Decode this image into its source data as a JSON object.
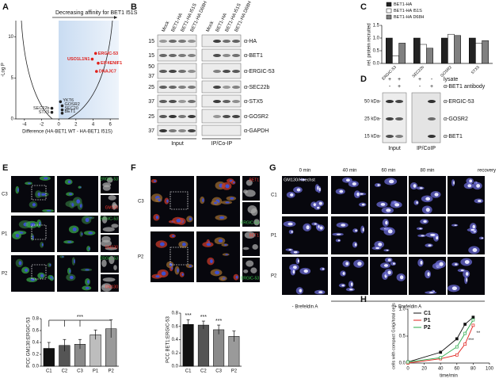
{
  "figure": {
    "panel_labels": [
      "A",
      "B",
      "C",
      "D",
      "E",
      "F",
      "G",
      "H"
    ],
    "panel_a": {
      "title": "Decreasing affinity for BET1 I51S"
    },
    "blot_b": {
      "lanes": [
        "Mock",
        "BET1-HA",
        "BET1-HA I51S",
        "BET1-HA D68H",
        "Mock",
        "BET1-HA",
        "BET1-HA I51S",
        "BET1-HA D68H"
      ],
      "rows": [
        {
          "mw": [
            15
          ],
          "antibody": "α-HA"
        },
        {
          "mw": [
            15
          ],
          "antibody": "α-BET1"
        },
        {
          "mw": [
            50,
            37
          ],
          "antibody": "α-ERGIC-53"
        },
        {
          "mw": [
            25
          ],
          "antibody": "α-SEC22b"
        },
        {
          "mw": [
            37
          ],
          "antibody": "α-STX5"
        },
        {
          "mw": [
            25
          ],
          "antibody": "α-GOSR2"
        },
        {
          "mw": [
            37
          ],
          "antibody": "α-GAPDH"
        }
      ],
      "groups": [
        "Input",
        "IP/Co-IP"
      ]
    },
    "blot_d": {
      "conditions": [
        {
          "label": "lysate",
          "signs": [
            "+",
            "+",
            "+",
            "-"
          ]
        },
        {
          "label": "α-BET1 antibody",
          "signs": [
            "-",
            "+",
            "-",
            "+"
          ]
        }
      ],
      "rows": [
        {
          "mw": "50 kDa-",
          "antibody": "α-ERGIC-53"
        },
        {
          "mw": "25 kDa-",
          "antibody": "α-GOSR2"
        },
        {
          "mw": "15 kDa-",
          "antibody": "α-BET1"
        }
      ],
      "groups": [
        "Input",
        "IP/CoIP"
      ]
    },
    "micro_e": {
      "rows": [
        "C3",
        "P1",
        "P2"
      ],
      "channels": [
        "ERGIC-53",
        "GM130"
      ]
    },
    "micro_f": {
      "rows": [
        "C3",
        "P2"
      ],
      "channels": [
        "BET1",
        "ERGIC-53"
      ]
    },
    "micro_g": {
      "stain": "GM130/Hoechst",
      "columns": [
        "0 min",
        "40 min",
        "60 min",
        "80 min",
        "recovery"
      ],
      "rows": [
        "C1",
        "P1",
        "P2"
      ],
      "treatments": [
        "- Brefeldin A",
        "+ Brefeldin A"
      ]
    }
  },
  "chart_data": [
    {
      "type": "scatter",
      "xlabel": "Difference (HA-BET1 WT - HA-BET1 I51S)",
      "ylabel": "-Log P",
      "x": [
        4.3,
        3.9,
        4.6,
        4.4,
        0.2,
        0.4,
        0.4,
        0.4,
        -0.8,
        -0.8
      ],
      "values": [
        8,
        7.3,
        6.8,
        5.8,
        2.1,
        1.6,
        1.1,
        0.7,
        1.3,
        0.8
      ],
      "point_labels": [
        "ERGIC-53",
        "USO1L1N1",
        "EIF4ENIF1",
        "DNAJC7",
        "YKT6",
        "GOSR2",
        "SEC20",
        "BET1",
        "SEC22b",
        "STX5"
      ],
      "colors": [
        "#e0201b",
        "#e0201b",
        "#e0201b",
        "#e0201b",
        "#222222",
        "#222222",
        "#222222",
        "#222222",
        "#222222",
        "#222222"
      ],
      "xlim": [
        -5,
        7
      ],
      "xticks": [
        -4,
        -2,
        0,
        2,
        4,
        6
      ],
      "ylim": [
        0,
        12
      ],
      "yticks": [
        0,
        5,
        10
      ]
    },
    {
      "type": "bar",
      "ylabel": "rel. protein recruited",
      "categories": [
        "ERGIC-53",
        "SEC22b",
        "GOSR2",
        "STX5"
      ],
      "series": [
        {
          "name": "BET1-HA",
          "color": "#222222",
          "values": [
            1.0,
            1.0,
            1.0,
            1.0
          ]
        },
        {
          "name": "BET1-HA I51S",
          "color": "#ffffff",
          "values": [
            0.3,
            0.75,
            1.15,
            0.8
          ]
        },
        {
          "name": "BET1-HA D68H",
          "color": "#808080",
          "values": [
            0.8,
            0.6,
            1.1,
            0.9
          ]
        }
      ],
      "ylim": [
        0,
        1.5
      ],
      "yticks": [
        {
          "value": 0,
          "label": "0.0"
        },
        {
          "value": 0.5,
          "label": "0.5"
        },
        {
          "value": 1,
          "label": "1.0"
        },
        {
          "value": 1.5,
          "label": "1.5"
        }
      ]
    },
    {
      "type": "bar",
      "ylabel": "PCC GM130:ERGIC-53",
      "categories": [
        "C1",
        "C2",
        "C3",
        "P1",
        "P2"
      ],
      "values": [
        0.3,
        0.35,
        0.37,
        0.53,
        0.63
      ],
      "errors": [
        0.1,
        0.1,
        0.08,
        0.08,
        0.15
      ],
      "colors": [
        "#111111",
        "#555555",
        "#8a8a8a",
        "#bdbdbd",
        "#9a9a9a"
      ],
      "bracket_label": "***",
      "ylim": [
        0,
        0.8
      ],
      "yticks": [
        {
          "value": 0,
          "label": "0.0"
        },
        {
          "value": 0.2,
          "label": "0.2"
        },
        {
          "value": 0.4,
          "label": "0.4"
        },
        {
          "value": 0.6,
          "label": "0.6"
        },
        {
          "value": 0.8,
          "label": "0.8"
        }
      ]
    },
    {
      "type": "bar",
      "ylabel": "PCC BET1:ERGIC-53",
      "categories": [
        "C1",
        "C2",
        "C3",
        "P2"
      ],
      "values": [
        0.63,
        0.62,
        0.55,
        0.45
      ],
      "errors": [
        0.07,
        0.06,
        0.07,
        0.08
      ],
      "colors": [
        "#111111",
        "#555555",
        "#8a8a8a",
        "#9a9a9a"
      ],
      "annotations": [
        "***",
        "***",
        "***"
      ],
      "ylim": [
        0,
        0.8
      ],
      "yticks": [
        {
          "value": 0,
          "label": "0.0"
        },
        {
          "value": 0.2,
          "label": "0.2"
        },
        {
          "value": 0.4,
          "label": "0.4"
        },
        {
          "value": 0.6,
          "label": "0.6"
        },
        {
          "value": 0.8,
          "label": "0.8"
        }
      ]
    },
    {
      "type": "line",
      "xlabel": "time/min",
      "ylabel": "cells with compact Golgi/total cells",
      "x": [
        0,
        40,
        60,
        70,
        80
      ],
      "series": [
        {
          "name": "C1",
          "color": "#111111",
          "values": [
            0.02,
            0.2,
            0.45,
            0.72,
            0.85
          ]
        },
        {
          "name": "P1",
          "color": "#e0201b",
          "values": [
            0.0,
            0.08,
            0.15,
            0.35,
            0.7
          ]
        },
        {
          "name": "P2",
          "color": "#2aa84a",
          "values": [
            0.02,
            0.1,
            0.3,
            0.55,
            0.8
          ]
        }
      ],
      "annotations": [
        "**",
        "***"
      ],
      "xlim": [
        0,
        100
      ],
      "xticks": [
        0,
        20,
        40,
        60,
        80,
        100
      ],
      "ylim": [
        0,
        1
      ],
      "yticks": [
        {
          "value": 0,
          "label": "0.0"
        },
        {
          "value": 0.5,
          "label": "0.5"
        },
        {
          "value": 1,
          "label": "1.0"
        }
      ]
    }
  ]
}
